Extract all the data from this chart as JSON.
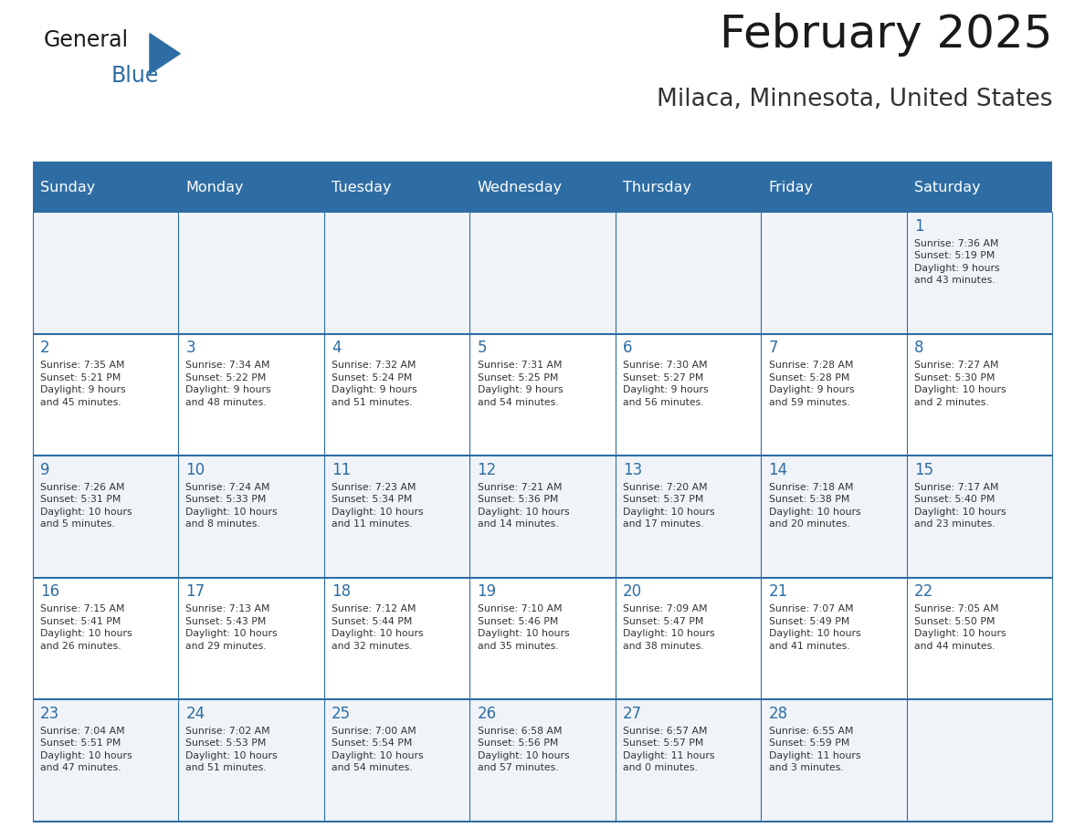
{
  "title": "February 2025",
  "subtitle": "Milaca, Minnesota, United States",
  "header_bg": "#2E6DA4",
  "header_text_color": "#FFFFFF",
  "cell_bg_odd": "#F0F4F8",
  "cell_bg_even": "#FFFFFF",
  "day_number_color": "#2E6DA4",
  "cell_text_color": "#333333",
  "grid_line_color": "#2E6DA4",
  "days_of_week": [
    "Sunday",
    "Monday",
    "Tuesday",
    "Wednesday",
    "Thursday",
    "Friday",
    "Saturday"
  ],
  "weeks": [
    [
      {
        "day": "",
        "info": ""
      },
      {
        "day": "",
        "info": ""
      },
      {
        "day": "",
        "info": ""
      },
      {
        "day": "",
        "info": ""
      },
      {
        "day": "",
        "info": ""
      },
      {
        "day": "",
        "info": ""
      },
      {
        "day": "1",
        "info": "Sunrise: 7:36 AM\nSunset: 5:19 PM\nDaylight: 9 hours\nand 43 minutes."
      }
    ],
    [
      {
        "day": "2",
        "info": "Sunrise: 7:35 AM\nSunset: 5:21 PM\nDaylight: 9 hours\nand 45 minutes."
      },
      {
        "day": "3",
        "info": "Sunrise: 7:34 AM\nSunset: 5:22 PM\nDaylight: 9 hours\nand 48 minutes."
      },
      {
        "day": "4",
        "info": "Sunrise: 7:32 AM\nSunset: 5:24 PM\nDaylight: 9 hours\nand 51 minutes."
      },
      {
        "day": "5",
        "info": "Sunrise: 7:31 AM\nSunset: 5:25 PM\nDaylight: 9 hours\nand 54 minutes."
      },
      {
        "day": "6",
        "info": "Sunrise: 7:30 AM\nSunset: 5:27 PM\nDaylight: 9 hours\nand 56 minutes."
      },
      {
        "day": "7",
        "info": "Sunrise: 7:28 AM\nSunset: 5:28 PM\nDaylight: 9 hours\nand 59 minutes."
      },
      {
        "day": "8",
        "info": "Sunrise: 7:27 AM\nSunset: 5:30 PM\nDaylight: 10 hours\nand 2 minutes."
      }
    ],
    [
      {
        "day": "9",
        "info": "Sunrise: 7:26 AM\nSunset: 5:31 PM\nDaylight: 10 hours\nand 5 minutes."
      },
      {
        "day": "10",
        "info": "Sunrise: 7:24 AM\nSunset: 5:33 PM\nDaylight: 10 hours\nand 8 minutes."
      },
      {
        "day": "11",
        "info": "Sunrise: 7:23 AM\nSunset: 5:34 PM\nDaylight: 10 hours\nand 11 minutes."
      },
      {
        "day": "12",
        "info": "Sunrise: 7:21 AM\nSunset: 5:36 PM\nDaylight: 10 hours\nand 14 minutes."
      },
      {
        "day": "13",
        "info": "Sunrise: 7:20 AM\nSunset: 5:37 PM\nDaylight: 10 hours\nand 17 minutes."
      },
      {
        "day": "14",
        "info": "Sunrise: 7:18 AM\nSunset: 5:38 PM\nDaylight: 10 hours\nand 20 minutes."
      },
      {
        "day": "15",
        "info": "Sunrise: 7:17 AM\nSunset: 5:40 PM\nDaylight: 10 hours\nand 23 minutes."
      }
    ],
    [
      {
        "day": "16",
        "info": "Sunrise: 7:15 AM\nSunset: 5:41 PM\nDaylight: 10 hours\nand 26 minutes."
      },
      {
        "day": "17",
        "info": "Sunrise: 7:13 AM\nSunset: 5:43 PM\nDaylight: 10 hours\nand 29 minutes."
      },
      {
        "day": "18",
        "info": "Sunrise: 7:12 AM\nSunset: 5:44 PM\nDaylight: 10 hours\nand 32 minutes."
      },
      {
        "day": "19",
        "info": "Sunrise: 7:10 AM\nSunset: 5:46 PM\nDaylight: 10 hours\nand 35 minutes."
      },
      {
        "day": "20",
        "info": "Sunrise: 7:09 AM\nSunset: 5:47 PM\nDaylight: 10 hours\nand 38 minutes."
      },
      {
        "day": "21",
        "info": "Sunrise: 7:07 AM\nSunset: 5:49 PM\nDaylight: 10 hours\nand 41 minutes."
      },
      {
        "day": "22",
        "info": "Sunrise: 7:05 AM\nSunset: 5:50 PM\nDaylight: 10 hours\nand 44 minutes."
      }
    ],
    [
      {
        "day": "23",
        "info": "Sunrise: 7:04 AM\nSunset: 5:51 PM\nDaylight: 10 hours\nand 47 minutes."
      },
      {
        "day": "24",
        "info": "Sunrise: 7:02 AM\nSunset: 5:53 PM\nDaylight: 10 hours\nand 51 minutes."
      },
      {
        "day": "25",
        "info": "Sunrise: 7:00 AM\nSunset: 5:54 PM\nDaylight: 10 hours\nand 54 minutes."
      },
      {
        "day": "26",
        "info": "Sunrise: 6:58 AM\nSunset: 5:56 PM\nDaylight: 10 hours\nand 57 minutes."
      },
      {
        "day": "27",
        "info": "Sunrise: 6:57 AM\nSunset: 5:57 PM\nDaylight: 11 hours\nand 0 minutes."
      },
      {
        "day": "28",
        "info": "Sunrise: 6:55 AM\nSunset: 5:59 PM\nDaylight: 11 hours\nand 3 minutes."
      },
      {
        "day": "",
        "info": ""
      }
    ]
  ],
  "logo_general_color": "#1a1a1a",
  "logo_blue_color": "#2E6DA4",
  "title_color": "#1a1a1a",
  "subtitle_color": "#333333"
}
